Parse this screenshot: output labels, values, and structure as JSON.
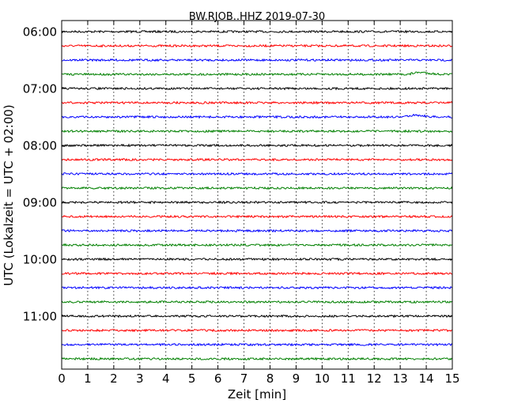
{
  "chart_data": {
    "type": "line",
    "title": "BW.RJOB..HHZ 2019-07-30",
    "xlabel": "Zeit  [min]",
    "ylabel": "UTC (Lokalzeit = UTC + 02:00)",
    "x_range": [
      0,
      15
    ],
    "x_ticks": [
      "0",
      "1",
      "2",
      "3",
      "4",
      "5",
      "6",
      "7",
      "8",
      "9",
      "10",
      "11",
      "12",
      "13",
      "14",
      "15"
    ],
    "y_ticks": [
      "06:00",
      "07:00",
      "08:00",
      "09:00",
      "10:00",
      "11:00"
    ],
    "grid": "vertical dotted at each minute",
    "colors": [
      "#000000",
      "#ff0000",
      "#0000ff",
      "#008000"
    ],
    "series_interval_min": 15,
    "series_count": 24,
    "series": [
      {
        "start": "06:00",
        "color": "#000000"
      },
      {
        "start": "06:15",
        "color": "#ff0000"
      },
      {
        "start": "06:30",
        "color": "#0000ff"
      },
      {
        "start": "06:45",
        "color": "#008000",
        "event_at_min": 13.8
      },
      {
        "start": "07:00",
        "color": "#000000"
      },
      {
        "start": "07:15",
        "color": "#ff0000"
      },
      {
        "start": "07:30",
        "color": "#0000ff",
        "event_at_min": 13.6
      },
      {
        "start": "07:45",
        "color": "#008000"
      },
      {
        "start": "08:00",
        "color": "#000000"
      },
      {
        "start": "08:15",
        "color": "#ff0000"
      },
      {
        "start": "08:30",
        "color": "#0000ff"
      },
      {
        "start": "08:45",
        "color": "#008000"
      },
      {
        "start": "09:00",
        "color": "#000000"
      },
      {
        "start": "09:15",
        "color": "#ff0000"
      },
      {
        "start": "09:30",
        "color": "#0000ff"
      },
      {
        "start": "09:45",
        "color": "#008000"
      },
      {
        "start": "10:00",
        "color": "#000000"
      },
      {
        "start": "10:15",
        "color": "#ff0000"
      },
      {
        "start": "10:30",
        "color": "#0000ff"
      },
      {
        "start": "10:45",
        "color": "#008000"
      },
      {
        "start": "11:00",
        "color": "#000000"
      },
      {
        "start": "11:15",
        "color": "#ff0000"
      },
      {
        "start": "11:30",
        "color": "#0000ff"
      },
      {
        "start": "11:45",
        "color": "#008000"
      }
    ]
  }
}
